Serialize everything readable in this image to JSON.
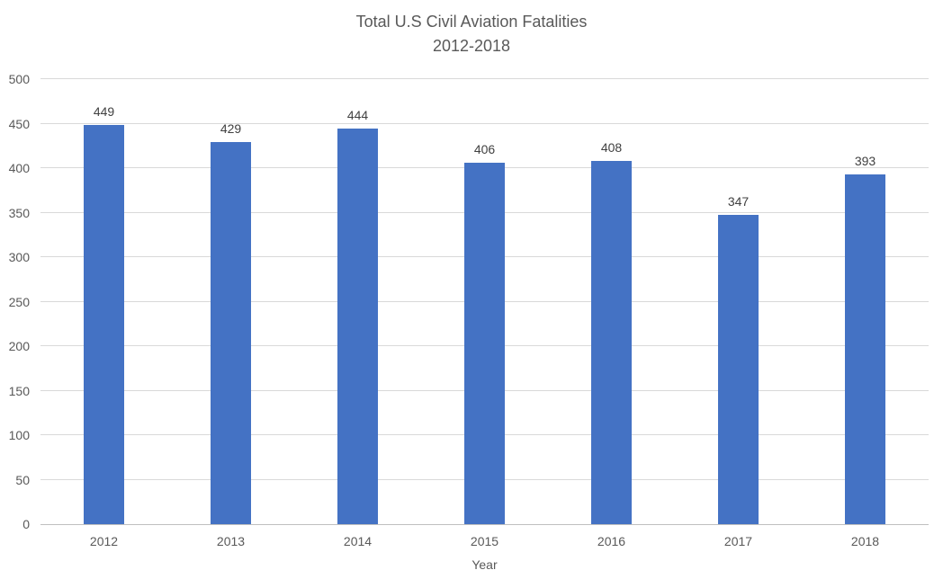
{
  "chart_data": {
    "type": "bar",
    "title": "Total U.S Civil Aviation Fatalities 2012-2018",
    "title_lines": [
      "Total U.S Civil Aviation Fatalities",
      "2012-2018"
    ],
    "categories": [
      "2012",
      "2013",
      "2014",
      "2015",
      "2016",
      "2017",
      "2018"
    ],
    "values": [
      449,
      429,
      444,
      406,
      408,
      347,
      393
    ],
    "xlabel": "Year",
    "ylabel": "",
    "ylim": [
      0,
      500
    ],
    "ytick_step": 50,
    "ytick_labels": [
      "0",
      "50",
      "100",
      "150",
      "200",
      "250",
      "300",
      "350",
      "400",
      "450",
      "500"
    ],
    "grid": true,
    "legend": "none",
    "data_labels": "outside-end",
    "colors": {
      "bar": "#4472C4",
      "title_text": "#595959",
      "axis_text": "#595959",
      "data_label_text": "#404040",
      "gridline": "#D9D9D9",
      "axis_line": "#BFBFBF",
      "background": "#FFFFFF"
    }
  }
}
